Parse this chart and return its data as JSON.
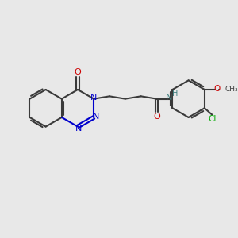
{
  "bg_color": "#e8e8e8",
  "bond_color": "#3a3a3a",
  "n_color": "#0000cc",
  "o_color": "#cc0000",
  "cl_color": "#00aa00",
  "h_color": "#408080",
  "line_width": 1.5,
  "fig_size": [
    3.0,
    3.0
  ],
  "dpi": 100,
  "xlim": [
    0,
    10
  ],
  "ylim": [
    0,
    10
  ]
}
